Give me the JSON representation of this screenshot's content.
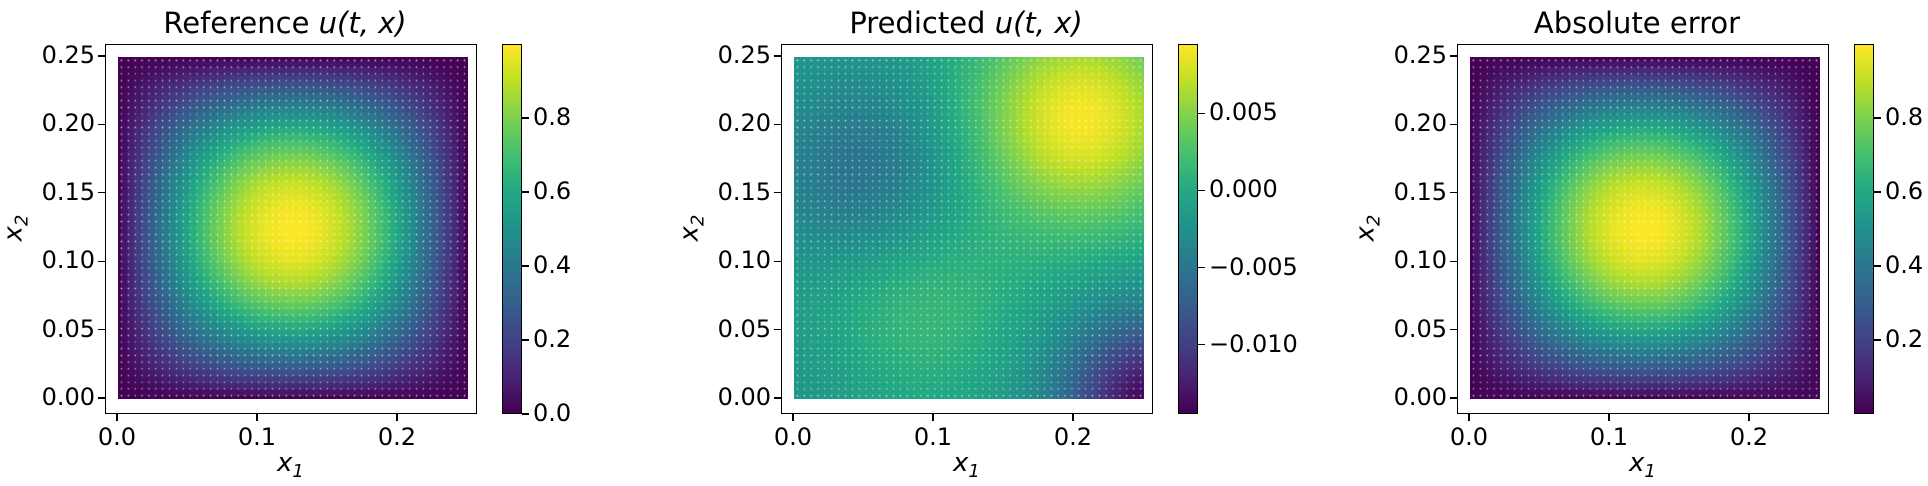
{
  "chart_data": [
    {
      "type": "heatmap",
      "title_prefix": "Reference ",
      "title_math": "u(t, x)",
      "xlabel": "x",
      "xlabel_sub": "1",
      "ylabel": "x",
      "ylabel_sub": "2",
      "xlim": [
        0.0,
        0.25
      ],
      "ylim": [
        0.0,
        0.25
      ],
      "xticks": [
        "0.0",
        "0.1",
        "0.2"
      ],
      "yticks": [
        "0.00",
        "0.05",
        "0.10",
        "0.15",
        "0.20",
        "0.25"
      ],
      "colormap": "viridis",
      "colorbar_range": [
        0.0,
        1.0
      ],
      "colorbar_ticks": [
        "0.0",
        "0.2",
        "0.4",
        "0.6",
        "0.8"
      ],
      "field": "sin(4πx1)·sin(4πx2), peak ≈ 1.0 at (0.125, 0.125), 0 on boundary"
    },
    {
      "type": "heatmap",
      "title_prefix": "Predicted ",
      "title_math": "u(t, x)",
      "xlabel": "x",
      "xlabel_sub": "1",
      "ylabel": "x",
      "ylabel_sub": "2",
      "xlim": [
        0.0,
        0.25
      ],
      "ylim": [
        0.0,
        0.25
      ],
      "xticks": [
        "0.0",
        "0.1",
        "0.2"
      ],
      "yticks": [
        "0.00",
        "0.05",
        "0.10",
        "0.15",
        "0.20",
        "0.25"
      ],
      "colormap": "viridis",
      "colorbar_range": [
        -0.0145,
        0.0095
      ],
      "colorbar_ticks": [
        "−0.010",
        "−0.005",
        "0.000",
        "0.005"
      ],
      "field": "smooth field: max ≈ 0.009 near (0.20, 0.20), min ≈ −0.014 near (0.25, 0.0), low ≈ −0.005 near (0.05, 0.17)"
    },
    {
      "type": "heatmap",
      "title_prefix": "Absolute error",
      "title_math": "",
      "xlabel": "x",
      "xlabel_sub": "1",
      "ylabel": "x",
      "ylabel_sub": "2",
      "xlim": [
        0.0,
        0.25
      ],
      "ylim": [
        0.0,
        0.25
      ],
      "xticks": [
        "0.0",
        "0.1",
        "0.2"
      ],
      "yticks": [
        "0.00",
        "0.05",
        "0.10",
        "0.15",
        "0.20",
        "0.25"
      ],
      "colormap": "viridis",
      "colorbar_range": [
        0.0,
        1.0
      ],
      "colorbar_ticks": [
        "0.2",
        "0.4",
        "0.6",
        "0.8"
      ],
      "field": "≈ |reference − predicted|, peak ≈ 1.0 at (0.125, 0.125)"
    }
  ]
}
